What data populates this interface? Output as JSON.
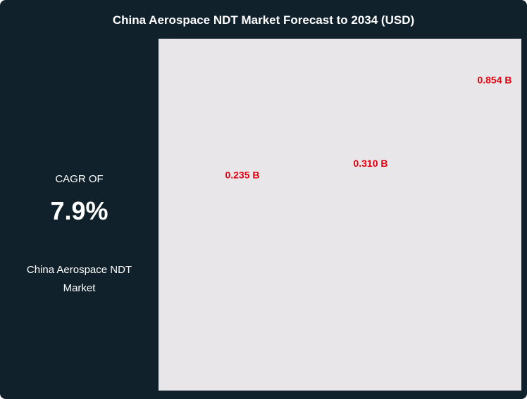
{
  "chart_data": {
    "type": "bar",
    "title": "China Aerospace NDT Market Forecast to 2034 (USD)",
    "annotations": {
      "cagr_label": "CAGR OF",
      "cagr_value": "7.9%",
      "market_name": "China Aerospace NDT Market"
    },
    "values": [
      0.235,
      0.31,
      0.854
    ],
    "value_labels": [
      "0.235 B",
      "0.310 B",
      "0.854 B"
    ],
    "label_color": "#e3000f"
  }
}
